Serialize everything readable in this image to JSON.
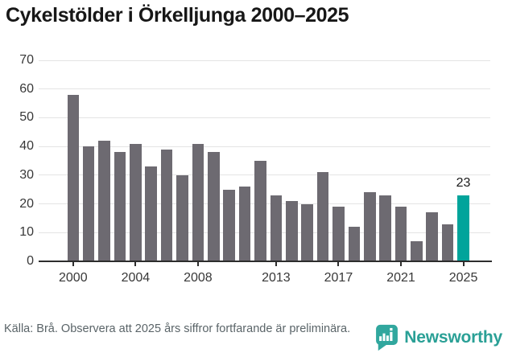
{
  "title": "Cykelstölder i Örkelljunga 2000–2025",
  "chart_data": {
    "type": "bar",
    "title": "Cykelstölder i Örkelljunga 2000–2025",
    "x": [
      2000,
      2001,
      2002,
      2003,
      2004,
      2005,
      2006,
      2007,
      2008,
      2009,
      2010,
      2011,
      2012,
      2013,
      2014,
      2015,
      2016,
      2017,
      2018,
      2019,
      2020,
      2021,
      2022,
      2023,
      2024,
      2025
    ],
    "values": [
      58,
      40,
      42,
      38,
      41,
      33,
      39,
      30,
      41,
      38,
      25,
      26,
      35,
      23,
      21,
      20,
      31,
      19,
      12,
      24,
      23,
      19,
      7,
      17,
      13,
      23
    ],
    "xlabel": "",
    "ylabel": "",
    "ylim": [
      0,
      70
    ],
    "yticks": [
      0,
      10,
      20,
      30,
      40,
      50,
      60,
      70
    ],
    "xticks": [
      2000,
      2004,
      2008,
      2013,
      2017,
      2021,
      2025
    ],
    "grid": true,
    "legend": "none",
    "bar_color": "#6d6a71",
    "highlight_index": 25,
    "highlight_color": "#00a49b",
    "highlight_label": "23"
  },
  "footer": {
    "source_note": "Källa: Brå. Observera att 2025 års siffror fortfarande är preliminära.",
    "brand": "Newsworthy"
  },
  "colors": {
    "accent_teal": "#00a49b",
    "bar_gray": "#6d6a71",
    "brand_teal": "#2aa096",
    "grid": "#e4e4e4",
    "axis": "#2d2d2d",
    "text_dark": "#171717",
    "text_muted": "#5a6468"
  }
}
